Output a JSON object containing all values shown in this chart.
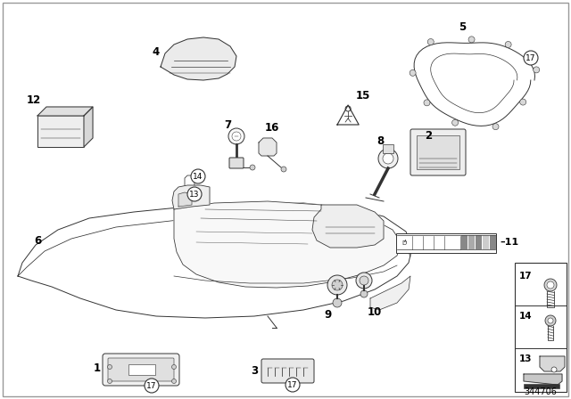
{
  "bg_color": "#ffffff",
  "line_color": "#333333",
  "part_number": "344706",
  "border_color": "#888888"
}
